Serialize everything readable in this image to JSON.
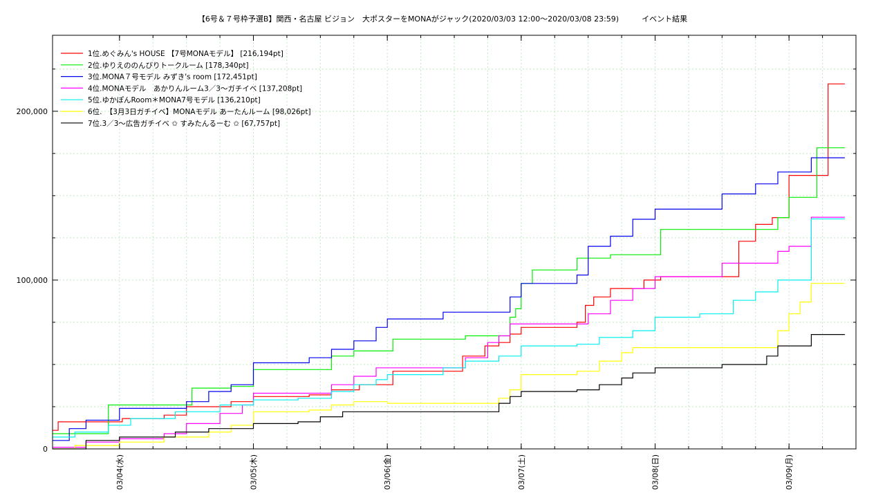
{
  "chart_data": {
    "type": "line",
    "title": "【6号＆７号枠予選B】関西・名古屋 ビジョン　大ポスターをMONAがジャック(2020/03/03 12:00〜2020/03/08 23:59)　　　イベント結果",
    "xlabel": "",
    "ylabel": "",
    "xlim": [
      "2020-03-03T12:00",
      "2020-03-09T12:00"
    ],
    "ylim": [
      0,
      245000
    ],
    "grid": true,
    "legend_position": "top-left",
    "x_ticks": [
      {
        "t": "2020-03-04T00:00",
        "label": "03/04(水)"
      },
      {
        "t": "2020-03-05T00:00",
        "label": "03/05(木)"
      },
      {
        "t": "2020-03-06T00:00",
        "label": "03/06(金)"
      },
      {
        "t": "2020-03-07T00:00",
        "label": "03/07(土)"
      },
      {
        "t": "2020-03-08T00:00",
        "label": "03/08(日)"
      },
      {
        "t": "2020-03-09T00:00",
        "label": "03/09(月)"
      }
    ],
    "y_ticks": [
      {
        "v": 0,
        "label": "0"
      },
      {
        "v": 100000,
        "label": "100,000"
      },
      {
        "v": 200000,
        "label": "200,000"
      }
    ],
    "series": [
      {
        "name": "1位.めぐみん's HOUSE 【7号MONAモデル】 [216,194pt]",
        "color": "#ff0000",
        "points": [
          [
            "2020-03-03T12:00",
            11000
          ],
          [
            "2020-03-03T13:00",
            16000
          ],
          [
            "2020-03-04T00:00",
            16000
          ],
          [
            "2020-03-04T00:30",
            18000
          ],
          [
            "2020-03-04T08:00",
            20000
          ],
          [
            "2020-03-04T12:00",
            25000
          ],
          [
            "2020-03-04T20:00",
            28000
          ],
          [
            "2020-03-05T00:00",
            31000
          ],
          [
            "2020-03-05T10:00",
            32000
          ],
          [
            "2020-03-05T14:00",
            35000
          ],
          [
            "2020-03-05T19:00",
            38000
          ],
          [
            "2020-03-06T00:00",
            38000
          ],
          [
            "2020-03-06T01:00",
            46000
          ],
          [
            "2020-03-06T12:00",
            46000
          ],
          [
            "2020-03-06T13:30",
            55000
          ],
          [
            "2020-03-06T16:00",
            55000
          ],
          [
            "2020-03-06T17:30",
            61000
          ],
          [
            "2020-03-06T20:00",
            63000
          ],
          [
            "2020-03-06T22:00",
            68000
          ],
          [
            "2020-03-07T00:00",
            72000
          ],
          [
            "2020-03-07T10:00",
            75000
          ],
          [
            "2020-03-07T11:30",
            85000
          ],
          [
            "2020-03-07T13:00",
            90000
          ],
          [
            "2020-03-07T16:00",
            95000
          ],
          [
            "2020-03-07T22:00",
            100000
          ],
          [
            "2020-03-08T00:00",
            100000
          ],
          [
            "2020-03-08T01:00",
            102000
          ],
          [
            "2020-03-08T14:00",
            102000
          ],
          [
            "2020-03-08T15:00",
            123000
          ],
          [
            "2020-03-08T18:00",
            133000
          ],
          [
            "2020-03-08T21:00",
            137000
          ],
          [
            "2020-03-09T00:00",
            162000
          ],
          [
            "2020-03-09T04:00",
            162000
          ],
          [
            "2020-03-09T07:00",
            216194
          ],
          [
            "2020-03-09T10:00",
            216194
          ]
        ]
      },
      {
        "name": "2位.ゆりえののんびりトークルーム [178,340pt]",
        "color": "#00ee00",
        "points": [
          [
            "2020-03-03T12:00",
            9000
          ],
          [
            "2020-03-03T20:00",
            9000
          ],
          [
            "2020-03-03T22:00",
            26000
          ],
          [
            "2020-03-04T12:00",
            26000
          ],
          [
            "2020-03-04T13:00",
            36000
          ],
          [
            "2020-03-04T20:00",
            37000
          ],
          [
            "2020-03-05T00:00",
            47000
          ],
          [
            "2020-03-05T12:00",
            47000
          ],
          [
            "2020-03-05T14:00",
            55000
          ],
          [
            "2020-03-05T18:00",
            58000
          ],
          [
            "2020-03-06T00:00",
            58000
          ],
          [
            "2020-03-06T01:00",
            65000
          ],
          [
            "2020-03-06T12:00",
            65000
          ],
          [
            "2020-03-06T14:00",
            67000
          ],
          [
            "2020-03-06T20:00",
            67000
          ],
          [
            "2020-03-06T22:00",
            78000
          ],
          [
            "2020-03-06T23:00",
            83000
          ],
          [
            "2020-03-07T00:00",
            98000
          ],
          [
            "2020-03-07T02:00",
            106000
          ],
          [
            "2020-03-07T08:00",
            106000
          ],
          [
            "2020-03-07T10:00",
            113000
          ],
          [
            "2020-03-07T16:00",
            115000
          ],
          [
            "2020-03-08T00:00",
            115000
          ],
          [
            "2020-03-08T01:00",
            130000
          ],
          [
            "2020-03-08T20:00",
            130000
          ],
          [
            "2020-03-08T22:00",
            137000
          ],
          [
            "2020-03-09T00:00",
            149000
          ],
          [
            "2020-03-09T03:00",
            149000
          ],
          [
            "2020-03-09T05:00",
            178340
          ],
          [
            "2020-03-09T10:00",
            178340
          ]
        ]
      },
      {
        "name": "3位.MONA７号モデル みずき's room [172,451pt]",
        "color": "#0000ee",
        "points": [
          [
            "2020-03-03T12:00",
            5000
          ],
          [
            "2020-03-03T15:00",
            12000
          ],
          [
            "2020-03-03T18:00",
            17000
          ],
          [
            "2020-03-04T00:00",
            24000
          ],
          [
            "2020-03-04T12:00",
            28000
          ],
          [
            "2020-03-04T16:00",
            34000
          ],
          [
            "2020-03-04T20:00",
            38000
          ],
          [
            "2020-03-05T00:00",
            51000
          ],
          [
            "2020-03-05T08:00",
            51000
          ],
          [
            "2020-03-05T10:00",
            54000
          ],
          [
            "2020-03-05T14:00",
            59000
          ],
          [
            "2020-03-05T18:00",
            64000
          ],
          [
            "2020-03-05T22:00",
            72000
          ],
          [
            "2020-03-06T00:00",
            77000
          ],
          [
            "2020-03-06T08:00",
            77000
          ],
          [
            "2020-03-06T10:00",
            81000
          ],
          [
            "2020-03-06T20:00",
            81000
          ],
          [
            "2020-03-06T22:00",
            90000
          ],
          [
            "2020-03-07T00:00",
            98000
          ],
          [
            "2020-03-07T08:00",
            98000
          ],
          [
            "2020-03-07T10:00",
            103000
          ],
          [
            "2020-03-07T12:00",
            120000
          ],
          [
            "2020-03-07T16:00",
            126000
          ],
          [
            "2020-03-07T20:00",
            136000
          ],
          [
            "2020-03-08T00:00",
            142000
          ],
          [
            "2020-03-08T10:00",
            142000
          ],
          [
            "2020-03-08T12:00",
            151000
          ],
          [
            "2020-03-08T18:00",
            157000
          ],
          [
            "2020-03-08T22:00",
            164000
          ],
          [
            "2020-03-09T02:00",
            164000
          ],
          [
            "2020-03-09T04:00",
            172451
          ],
          [
            "2020-03-09T10:00",
            172451
          ]
        ]
      },
      {
        "name": "4位.MONAモデル　あかりんルーム3／3〜ガチイベ [137,208pt]",
        "color": "#ff00ff",
        "points": [
          [
            "2020-03-03T12:00",
            1000
          ],
          [
            "2020-03-03T18:00",
            4000
          ],
          [
            "2020-03-04T00:00",
            6000
          ],
          [
            "2020-03-04T08:00",
            9000
          ],
          [
            "2020-03-04T12:00",
            15000
          ],
          [
            "2020-03-04T18:00",
            21000
          ],
          [
            "2020-03-04T22:00",
            26000
          ],
          [
            "2020-03-05T00:00",
            33000
          ],
          [
            "2020-03-05T10:00",
            33000
          ],
          [
            "2020-03-05T14:00",
            38000
          ],
          [
            "2020-03-05T18:00",
            43000
          ],
          [
            "2020-03-05T22:00",
            48000
          ],
          [
            "2020-03-06T00:00",
            48000
          ],
          [
            "2020-03-06T12:00",
            48000
          ],
          [
            "2020-03-06T14:00",
            54000
          ],
          [
            "2020-03-06T18:00",
            63000
          ],
          [
            "2020-03-06T20:00",
            67000
          ],
          [
            "2020-03-06T22:00",
            74000
          ],
          [
            "2020-03-07T00:00",
            74000
          ],
          [
            "2020-03-07T10:00",
            74000
          ],
          [
            "2020-03-07T12:00",
            80000
          ],
          [
            "2020-03-07T16:00",
            88000
          ],
          [
            "2020-03-07T20:00",
            95000
          ],
          [
            "2020-03-08T00:00",
            102000
          ],
          [
            "2020-03-08T10:00",
            102000
          ],
          [
            "2020-03-08T12:00",
            110000
          ],
          [
            "2020-03-08T20:00",
            110000
          ],
          [
            "2020-03-08T22:00",
            117000
          ],
          [
            "2020-03-09T00:00",
            120000
          ],
          [
            "2020-03-09T02:00",
            120000
          ],
          [
            "2020-03-09T04:00",
            137208
          ],
          [
            "2020-03-09T10:00",
            137208
          ]
        ]
      },
      {
        "name": "5位.ゆかぽんRoom＊MONA7号モデル [136,210pt]",
        "color": "#00eeee",
        "points": [
          [
            "2020-03-03T12:00",
            7000
          ],
          [
            "2020-03-03T16:00",
            10000
          ],
          [
            "2020-03-03T22:00",
            14000
          ],
          [
            "2020-03-04T02:00",
            18000
          ],
          [
            "2020-03-04T10:00",
            22000
          ],
          [
            "2020-03-04T18:00",
            26000
          ],
          [
            "2020-03-05T00:00",
            29000
          ],
          [
            "2020-03-05T08:00",
            30000
          ],
          [
            "2020-03-05T14:00",
            34000
          ],
          [
            "2020-03-05T18:00",
            38000
          ],
          [
            "2020-03-05T22:00",
            41000
          ],
          [
            "2020-03-06T00:00",
            44000
          ],
          [
            "2020-03-06T10:00",
            48000
          ],
          [
            "2020-03-06T14:00",
            52000
          ],
          [
            "2020-03-06T20:00",
            55000
          ],
          [
            "2020-03-07T00:00",
            61000
          ],
          [
            "2020-03-07T10:00",
            62000
          ],
          [
            "2020-03-07T14:00",
            66000
          ],
          [
            "2020-03-07T20:00",
            70000
          ],
          [
            "2020-03-08T00:00",
            78000
          ],
          [
            "2020-03-08T08:00",
            80000
          ],
          [
            "2020-03-08T14:00",
            88000
          ],
          [
            "2020-03-08T18:00",
            93000
          ],
          [
            "2020-03-08T22:00",
            100000
          ],
          [
            "2020-03-09T02:00",
            100000
          ],
          [
            "2020-03-09T04:00",
            136210
          ],
          [
            "2020-03-09T10:00",
            136210
          ]
        ]
      },
      {
        "name": "6位.　【3月3日ガチイベ】MONAモデル あーたんルーム [98,026pt]",
        "color": "#ffff00",
        "points": [
          [
            "2020-03-03T12:00",
            0
          ],
          [
            "2020-03-03T16:00",
            2000
          ],
          [
            "2020-03-04T00:00",
            4000
          ],
          [
            "2020-03-04T08:00",
            7000
          ],
          [
            "2020-03-04T16:00",
            10000
          ],
          [
            "2020-03-04T20:00",
            14000
          ],
          [
            "2020-03-05T00:00",
            22000
          ],
          [
            "2020-03-05T10:00",
            23000
          ],
          [
            "2020-03-05T14:00",
            26000
          ],
          [
            "2020-03-05T18:00",
            28000
          ],
          [
            "2020-03-06T00:00",
            27000
          ],
          [
            "2020-03-06T16:00",
            27000
          ],
          [
            "2020-03-06T20:00",
            30000
          ],
          [
            "2020-03-06T22:00",
            35000
          ],
          [
            "2020-03-07T00:00",
            44000
          ],
          [
            "2020-03-07T10:00",
            46000
          ],
          [
            "2020-03-07T14:00",
            52000
          ],
          [
            "2020-03-07T18:00",
            57000
          ],
          [
            "2020-03-07T20:00",
            60000
          ],
          [
            "2020-03-08T00:00",
            60000
          ],
          [
            "2020-03-08T20:00",
            60000
          ],
          [
            "2020-03-08T22:00",
            70000
          ],
          [
            "2020-03-09T00:00",
            80000
          ],
          [
            "2020-03-09T02:00",
            87000
          ],
          [
            "2020-03-09T04:00",
            98026
          ],
          [
            "2020-03-09T10:00",
            98026
          ]
        ]
      },
      {
        "name": "7位.3／3〜広告ガチイベ ✩ すみたんるーむ ✩ [67,757pt]",
        "color": "#000000",
        "points": [
          [
            "2020-03-03T12:00",
            0
          ],
          [
            "2020-03-03T18:00",
            5000
          ],
          [
            "2020-03-04T00:00",
            7000
          ],
          [
            "2020-03-04T10:00",
            10000
          ],
          [
            "2020-03-04T16:00",
            12000
          ],
          [
            "2020-03-05T00:00",
            15000
          ],
          [
            "2020-03-05T08:00",
            16000
          ],
          [
            "2020-03-05T12:00",
            19000
          ],
          [
            "2020-03-05T16:00",
            22000
          ],
          [
            "2020-03-06T00:00",
            22000
          ],
          [
            "2020-03-06T16:00",
            22000
          ],
          [
            "2020-03-06T20:00",
            27000
          ],
          [
            "2020-03-06T22:00",
            31000
          ],
          [
            "2020-03-07T00:00",
            34000
          ],
          [
            "2020-03-07T10:00",
            35000
          ],
          [
            "2020-03-07T14:00",
            38000
          ],
          [
            "2020-03-07T18:00",
            42000
          ],
          [
            "2020-03-07T20:00",
            45000
          ],
          [
            "2020-03-08T00:00",
            48000
          ],
          [
            "2020-03-08T08:00",
            48000
          ],
          [
            "2020-03-08T12:00",
            50000
          ],
          [
            "2020-03-08T18:00",
            50000
          ],
          [
            "2020-03-08T20:00",
            55000
          ],
          [
            "2020-03-08T22:00",
            61000
          ],
          [
            "2020-03-09T02:00",
            61000
          ],
          [
            "2020-03-09T04:00",
            67757
          ],
          [
            "2020-03-09T10:00",
            67757
          ]
        ]
      }
    ]
  }
}
